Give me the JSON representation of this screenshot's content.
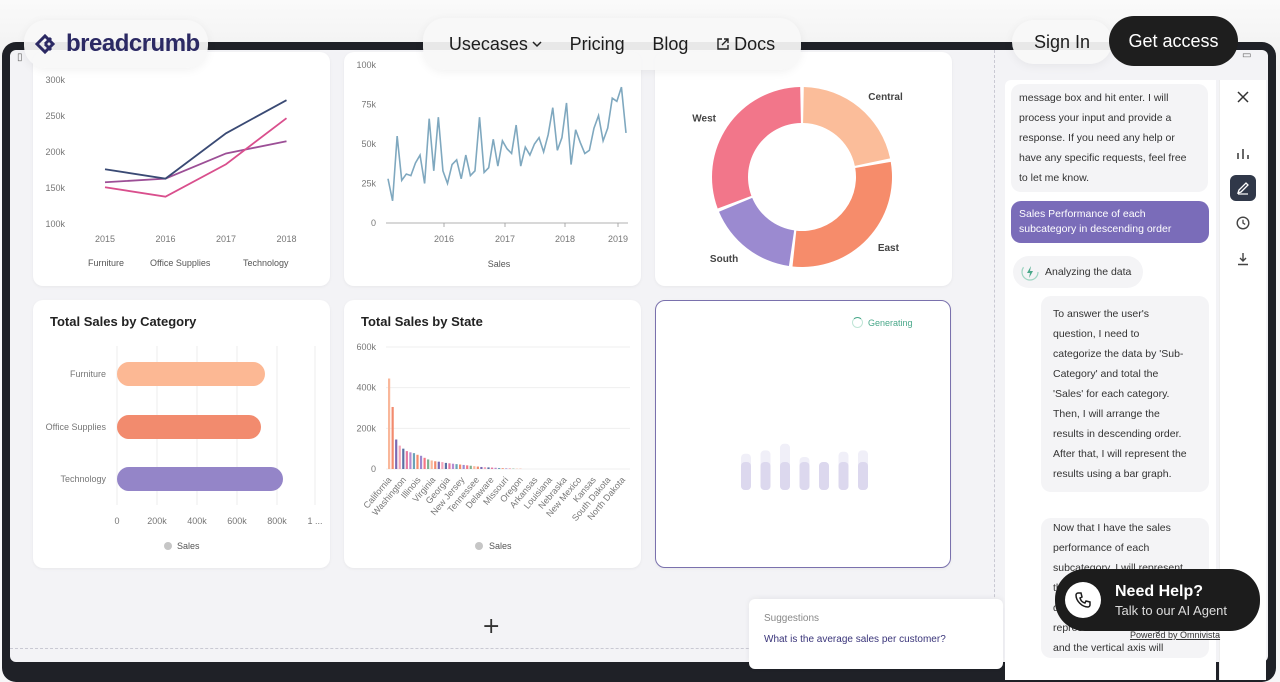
{
  "brand": {
    "name": "breadcrumb"
  },
  "nav": {
    "usecases": "Usecases",
    "pricing": "Pricing",
    "blog": "Blog",
    "docs": "Docs",
    "sign_in": "Sign In",
    "get_access": "Get access"
  },
  "charts": {
    "line_multi": {
      "chart_data": {
        "type": "line",
        "x": [
          "2015",
          "2016",
          "2017",
          "2018"
        ],
        "yticks": [
          "300k",
          "250k",
          "200k",
          "150k",
          "100k"
        ],
        "ylim": [
          100000,
          300000
        ],
        "series": [
          {
            "name": "Furniture",
            "values": [
              158000,
              163000,
              198000,
              215000
            ],
            "color": "#9c4f96"
          },
          {
            "name": "Office Supplies",
            "values": [
              151000,
              138000,
              183000,
              247000
            ],
            "color": "#d94f8d"
          },
          {
            "name": "Technology",
            "values": [
              176000,
              163000,
              226000,
              272000
            ],
            "color": "#3a4a74"
          }
        ]
      }
    },
    "sales_line": {
      "chart_data": {
        "type": "line",
        "yticks": [
          "100k",
          "75k",
          "50k",
          "25k",
          "0"
        ],
        "xticks": [
          "2016",
          "2017",
          "2018",
          "2019"
        ],
        "ylim": [
          0,
          100000
        ],
        "legend": "Sales",
        "values": [
          28000,
          14000,
          55000,
          27000,
          31000,
          30000,
          38000,
          43000,
          25000,
          66000,
          33000,
          67000,
          33000,
          25000,
          37000,
          40000,
          28000,
          43000,
          30000,
          33000,
          67000,
          32000,
          35000,
          53000,
          36000,
          52000,
          47000,
          44000,
          62000,
          36000,
          48000,
          43000,
          50000,
          54000,
          45000,
          56000,
          73000,
          46000,
          54000,
          76000,
          37000,
          59000,
          51000,
          44000,
          46000,
          60000,
          68000,
          52000,
          60000,
          79000,
          77000,
          86000,
          57000
        ],
        "color": "#7fa8bf"
      }
    },
    "donut": {
      "chart_data": {
        "type": "pie",
        "slices": [
          {
            "label": "Central",
            "value": 22,
            "color": "#fbbd9a"
          },
          {
            "label": "East",
            "value": 30,
            "color": "#f68c6b"
          },
          {
            "label": "South",
            "value": 17,
            "color": "#9b8ad0"
          },
          {
            "label": "West",
            "value": 31,
            "color": "#f2768a"
          }
        ]
      }
    },
    "category": {
      "title": "Total Sales by Category",
      "chart_data": {
        "type": "bar",
        "orientation": "horizontal",
        "categories": [
          "Furniture",
          "Office Supplies",
          "Technology"
        ],
        "values": [
          740000,
          720000,
          830000
        ],
        "xticks": [
          "0",
          "200k",
          "400k",
          "600k",
          "800k",
          "1 ..."
        ],
        "xlim": [
          0,
          1000000
        ],
        "colors": [
          "#fcb894",
          "#f28b6e",
          "#9485c8"
        ],
        "legend": "Sales"
      }
    },
    "state": {
      "title": "Total Sales by State",
      "chart_data": {
        "type": "bar",
        "yticks": [
          "600k",
          "400k",
          "200k",
          "0"
        ],
        "ylim": [
          0,
          600000
        ],
        "xticks": [
          "California",
          "Washington",
          "Illinois",
          "Virginia",
          "Georgia",
          "New Jersey",
          "Tennessee",
          "Delaware",
          "Missouri",
          "Oregon",
          "Arkansas",
          "Louisiana",
          "Nebraska",
          "New Mexico",
          "Kansas",
          "South Dakota",
          "North Dakota"
        ],
        "values": [
          445000,
          305000,
          145000,
          115000,
          100000,
          88000,
          82000,
          78000,
          70000,
          65000,
          55000,
          47000,
          42000,
          38000,
          36000,
          34000,
          30000,
          28000,
          26000,
          24000,
          22000,
          20000,
          18000,
          16000,
          14000,
          12000,
          10000,
          9000,
          8000,
          7000,
          6000,
          5000,
          4000,
          3000,
          2500,
          2000,
          1500,
          1200
        ],
        "colors": [
          "#f9b79a",
          "#f28b6e",
          "#7b6ab2",
          "#f4a6ba",
          "#5a6fa3",
          "#e77aa0",
          "#b58bd0",
          "#6aa3b7",
          "#f48c6c",
          "#9c89cf",
          "#f47784",
          "#7fb08f"
        ],
        "legend": "Sales"
      }
    },
    "generating": {
      "status": "Generating",
      "chart_data": {
        "type": "bar",
        "values": [
          0.55,
          0.6,
          0.7,
          0.5,
          0.42,
          0.58,
          0.6
        ]
      }
    }
  },
  "suggestions": {
    "title": "Suggestions",
    "item": "What is the average sales per customer?"
  },
  "chat": {
    "msg1": [
      "message box and hit enter. I will",
      "process your input and provide a",
      "response. If you need any help or",
      "have any specific requests, feel free",
      "to let me know."
    ],
    "user": [
      "Sales Performance of each",
      "subcategory in descending order"
    ],
    "analyzing": "Analyzing the data",
    "think1": [
      "To answer the user's",
      "question, I need to",
      "categorize the data by 'Sub-",
      "Category' and total the",
      "'Sales' for each category.",
      "Then, I will arrange the",
      "results in descending order.",
      "After that, I will represent the",
      "results using a bar graph."
    ],
    "think2": [
      "Now that I have the sales",
      "performance of each",
      "subcategory, I will represent",
      "the",
      "d",
      "represent the subcategories",
      "and the vertical axis will"
    ]
  },
  "help": {
    "title": "Need Help?",
    "subtitle": "Talk to our AI Agent",
    "powered": "Powered by Omnivista"
  }
}
